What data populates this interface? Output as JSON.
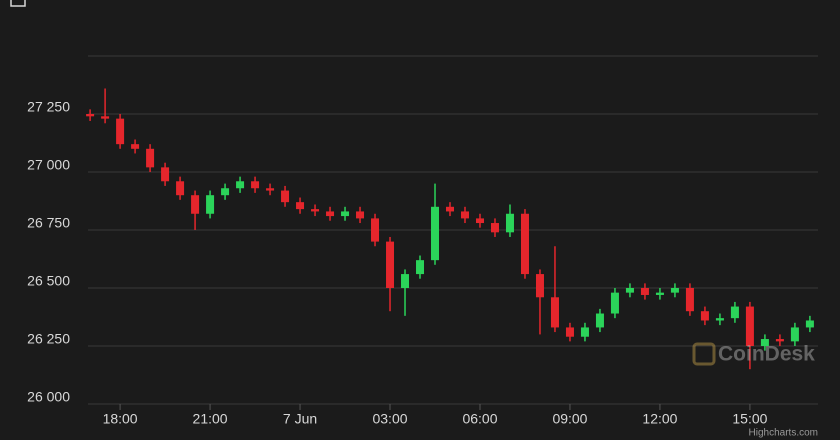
{
  "chart_data": {
    "type": "candlestick",
    "x": [
      17,
      17.5,
      18,
      18.5,
      19,
      19.5,
      20,
      20.5,
      21,
      21.5,
      22,
      22.5,
      23,
      23.5,
      24,
      24.5,
      25,
      25.5,
      26,
      26.5,
      27,
      27.5,
      28,
      28.5,
      29,
      29.5,
      30,
      30.5,
      31,
      31.5,
      32,
      32.5,
      33,
      33.5,
      34,
      34.5,
      35,
      35.5,
      36,
      36.5,
      37,
      37.5,
      38,
      38.5,
      39,
      39.5,
      40,
      40.5,
      41
    ],
    "open": [
      27250,
      27240,
      27230,
      27120,
      27100,
      27020,
      26960,
      26900,
      26820,
      26900,
      26930,
      26960,
      26930,
      26920,
      26870,
      26840,
      26830,
      26810,
      26830,
      26800,
      26700,
      26500,
      26560,
      26620,
      26850,
      26830,
      26800,
      26780,
      26740,
      26820,
      26560,
      26460,
      26330,
      26290,
      26330,
      26390,
      26480,
      26500,
      26470,
      26480,
      26500,
      26400,
      26360,
      26370,
      26420,
      26250,
      26280,
      26270,
      26330
    ],
    "high": [
      27270,
      27360,
      27250,
      27140,
      27120,
      27040,
      26980,
      26920,
      26920,
      26950,
      26980,
      26980,
      26950,
      26940,
      26890,
      26860,
      26850,
      26850,
      26850,
      26820,
      26720,
      26580,
      26640,
      26950,
      26870,
      26850,
      26820,
      26800,
      26860,
      26840,
      26580,
      26680,
      26350,
      26350,
      26410,
      26500,
      26520,
      26520,
      26500,
      26520,
      26520,
      26420,
      26390,
      26440,
      26440,
      26300,
      26300,
      26350,
      26380
    ],
    "low": [
      27220,
      27210,
      27100,
      27080,
      27000,
      26940,
      26880,
      26750,
      26800,
      26880,
      26910,
      26910,
      26900,
      26850,
      26820,
      26810,
      26790,
      26790,
      26780,
      26680,
      26400,
      26380,
      26540,
      26600,
      26810,
      26780,
      26760,
      26720,
      26720,
      26540,
      26300,
      26310,
      26270,
      26270,
      26310,
      26370,
      26460,
      26450,
      26450,
      26460,
      26380,
      26340,
      26340,
      26350,
      26150,
      26230,
      26250,
      26250,
      26310
    ],
    "close": [
      27240,
      27230,
      27120,
      27100,
      27020,
      26960,
      26900,
      26820,
      26900,
      26930,
      26960,
      26930,
      26920,
      26870,
      26840,
      26830,
      26810,
      26830,
      26800,
      26700,
      26500,
      26560,
      26620,
      26850,
      26830,
      26800,
      26780,
      26740,
      26820,
      26560,
      26460,
      26330,
      26290,
      26330,
      26390,
      26480,
      26500,
      26470,
      26480,
      26500,
      26400,
      26360,
      26370,
      26420,
      26250,
      26280,
      26270,
      26330,
      26360
    ],
    "up_color": "#2bd45a",
    "down_color": "#e5262c",
    "xlim": [
      16.93,
      41.27
    ],
    "xticks": [
      {
        "value": 18,
        "label": "18:00"
      },
      {
        "value": 21,
        "label": "21:00"
      },
      {
        "value": 24,
        "label": "7 Jun"
      },
      {
        "value": 27,
        "label": "03:00"
      },
      {
        "value": 30,
        "label": "06:00"
      },
      {
        "value": 33,
        "label": "09:00"
      },
      {
        "value": 36,
        "label": "12:00"
      },
      {
        "value": 39,
        "label": "15:00"
      }
    ],
    "ylim": [
      26000,
      27500
    ],
    "yticks": [
      {
        "value": 26000,
        "label": "26 000"
      },
      {
        "value": 26250,
        "label": "26 250"
      },
      {
        "value": 26500,
        "label": "26 500"
      },
      {
        "value": 26750,
        "label": "26 750"
      },
      {
        "value": 27000,
        "label": "27 000"
      },
      {
        "value": 27250,
        "label": "27 250"
      }
    ],
    "grid": true,
    "watermark": "CoinDesk",
    "credit": "Highcharts.com"
  }
}
